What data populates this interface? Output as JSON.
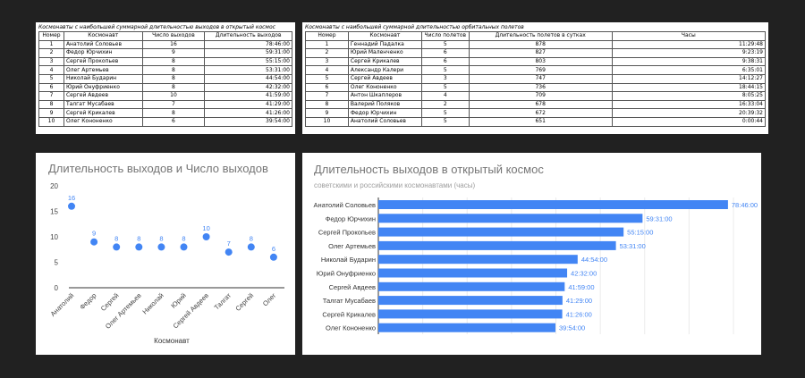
{
  "table1": {
    "title": "Космонавты с наибольшей суммарной длительностью выходов в открытый космос",
    "headers": [
      "Номер",
      "Космонавт",
      "Число выходов",
      "Длительность выходов"
    ],
    "rows": [
      [
        "1",
        "Анатолий Соловьев",
        "16",
        "78:46:00"
      ],
      [
        "2",
        "Федор Юрчихин",
        "9",
        "59:31:00"
      ],
      [
        "3",
        "Сергей Прокопьев",
        "8",
        "55:15:00"
      ],
      [
        "4",
        "Олег Артемьев",
        "8",
        "53:31:00"
      ],
      [
        "5",
        "Николай Бударин",
        "8",
        "44:54:00"
      ],
      [
        "6",
        "Юрий Онуфриенко",
        "8",
        "42:32:00"
      ],
      [
        "7",
        "Сергей Авдеев",
        "10",
        "41:59:00"
      ],
      [
        "8",
        "Талгат Мусабаев",
        "7",
        "41:29:00"
      ],
      [
        "9",
        "Сергей Крикалев",
        "8",
        "41:26:00"
      ],
      [
        "10",
        "Олег Кононенко",
        "6",
        "39:54:00"
      ]
    ]
  },
  "table2": {
    "title": "Космонавты с наибольшей суммарной длительностью орбитальных полетов",
    "headers": [
      "Номер",
      "Космонавт",
      "Число полетов",
      "Длительность полетов в сутках",
      "Часы"
    ],
    "rows": [
      [
        "1",
        "Геннадий Падалка",
        "5",
        "878",
        "11:29:48"
      ],
      [
        "2",
        "Юрий Маленченко",
        "6",
        "827",
        "9:23:19"
      ],
      [
        "3",
        "Сергей Крикалев",
        "6",
        "803",
        "9:38:31"
      ],
      [
        "4",
        "Александр Калери",
        "5",
        "769",
        "6:35:01"
      ],
      [
        "5",
        "Сергей Авдеев",
        "3",
        "747",
        "14:12:27"
      ],
      [
        "6",
        "Олег Кононенко",
        "5",
        "736",
        "18:44:15"
      ],
      [
        "7",
        "Антон Шкаплеров",
        "4",
        "709",
        "8:05:25"
      ],
      [
        "8",
        "Валерий Поляков",
        "2",
        "678",
        "16:33:04"
      ],
      [
        "9",
        "Федор Юрчихин",
        "5",
        "672",
        "20:39:32"
      ],
      [
        "10",
        "Анатолий Соловьев",
        "5",
        "651",
        "0:00:44"
      ]
    ]
  },
  "chart_data": [
    {
      "type": "scatter",
      "title": "Длительность выходов и Число выходов",
      "xlabel": "Космонавт",
      "ylabel": "",
      "categories": [
        "Анатолий",
        "Федор",
        "Сергей",
        "Олег Артемьев",
        "Николай",
        "Юрий",
        "Сергей Авдеев",
        "Талгат",
        "Сергей",
        "Олег"
      ],
      "values": [
        16,
        9,
        8,
        8,
        8,
        8,
        10,
        7,
        8,
        6
      ],
      "data_labels": [
        "16",
        "9",
        "8",
        "8",
        "8",
        "8",
        "10",
        "7",
        "8",
        "6"
      ],
      "yticks": [
        "0",
        "5",
        "10",
        "15",
        "20"
      ],
      "ylim": [
        0,
        20
      ],
      "grid": false,
      "color": "#4285f4"
    },
    {
      "type": "bar",
      "orientation": "horizontal",
      "title": "Длительность выходов в открытый космос",
      "subtitle": "советскими и российскими космонавтами (часы)",
      "categories": [
        "Анатолий Соловьев",
        "Федор Юрчихин",
        "Сергей Прокопьев",
        "Олег Артемьев",
        "Николай Бударин",
        "Юрий Онуфриенко",
        "Сергей Авдеев",
        "Талгат Мусабаев",
        "Сергей Крикалев",
        "Олег Кононенко"
      ],
      "values": [
        78.77,
        59.52,
        55.25,
        53.52,
        44.9,
        42.53,
        41.98,
        41.48,
        41.43,
        39.9
      ],
      "data_labels": [
        "78:46:00",
        "59:31:00",
        "55:15:00",
        "53:31:00",
        "44:54:00",
        "42:32:00",
        "41:59:00",
        "41:29:00",
        "41:26:00",
        "39:54:00"
      ],
      "xlim": [
        0,
        80
      ],
      "grid": true,
      "color": "#4285f4"
    }
  ]
}
